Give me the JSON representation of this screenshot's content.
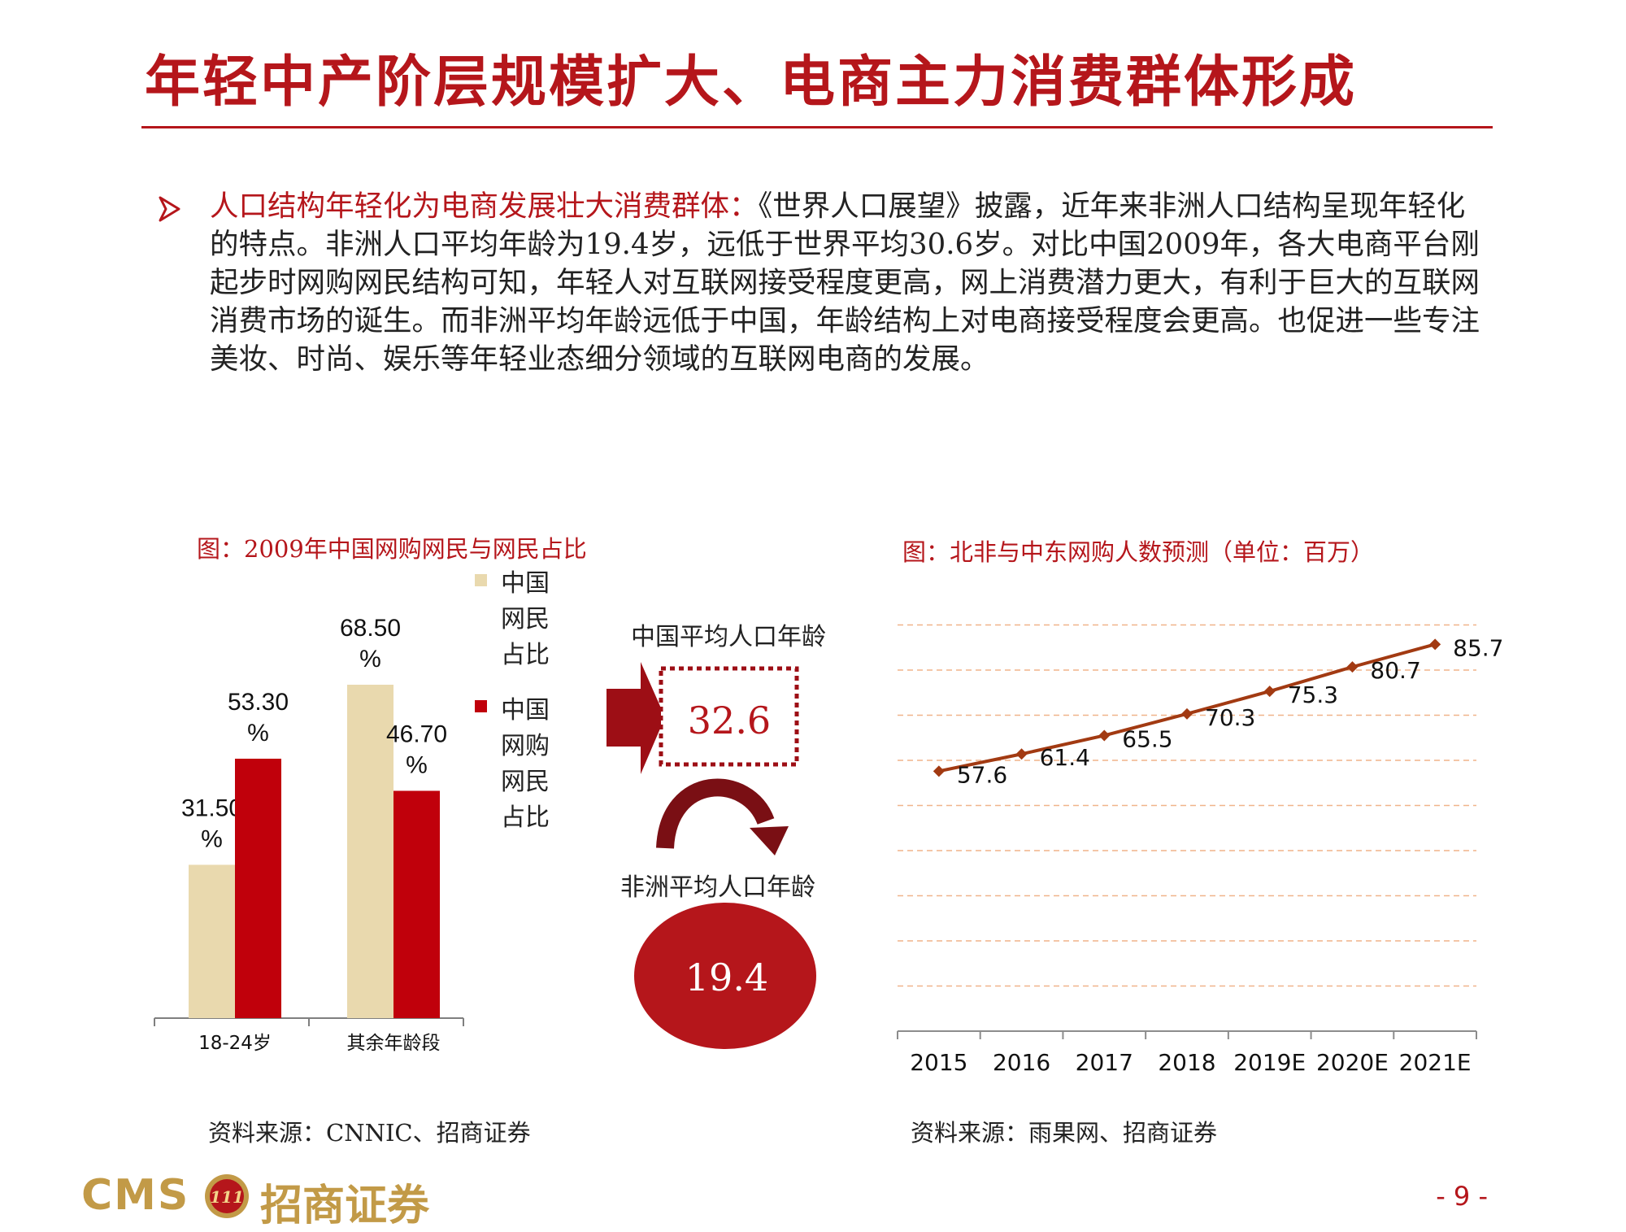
{
  "slide": {
    "title": "年轻中产阶层规模扩大、电商主力消费群体形成",
    "bullet_lead": "人口结构年轻化为电商发展壮大消费群体：",
    "bullet_text": "《世界人口展望》披露，近年来非洲人口结构呈现年轻化的特点。非洲人口平均年龄为19.4岁，远低于世界平均30.6岁。对比中国2009年，各大电商平台刚起步时网购网民结构可知，年轻人对互联网接受程度更高，网上消费潜力更大，有利于巨大的互联网消费市场的诞生。而非洲平均年龄远低于中国，年龄结构上对电商接受程度会更高。也促进一些专注美妆、时尚、娱乐等年轻业态细分领域的互联网电商的发展。",
    "page_number": "- 9 -"
  },
  "footer": {
    "logo_latin": "CMS",
    "logo_badge": "111",
    "logo_cn": "招商证券"
  },
  "left_chart": {
    "title": "图：2009年中国网购网民与网民占比",
    "source": "资料来源：CNNIC、招商证券"
  },
  "middle": {
    "china_label": "中国平均人口年龄",
    "china_value": "32.6",
    "africa_label": "非洲平均人口年龄",
    "africa_value": "19.4"
  },
  "right_chart": {
    "title": "图：北非与中东网购人数预测（单位：百万）",
    "source": "资料来源：雨果网、招商证券"
  },
  "colors": {
    "brand_red": "#b5161b",
    "bar_beige": "#e9d9ae",
    "bar_red": "#c0000b",
    "line_brown": "#a23a12",
    "gold": "#c29a47"
  },
  "chart_data": [
    {
      "type": "bar",
      "title": "图：2009年中国网购网民与网民占比",
      "categories": [
        "18-24岁",
        "其余年龄段"
      ],
      "series": [
        {
          "name": "中国网民占比",
          "values": [
            31.5,
            68.5
          ],
          "labels": [
            "31.50%",
            "68.50%"
          ],
          "color": "#e9d9ae"
        },
        {
          "name": "中国网购网民占比",
          "values": [
            53.3,
            46.7
          ],
          "labels": [
            "53.30%",
            "46.70%"
          ],
          "color": "#c0000b"
        }
      ],
      "ylim": [
        0,
        75
      ],
      "grid": false,
      "legend": "right"
    },
    {
      "type": "line",
      "title": "图：北非与中东网购人数预测（单位：百万）",
      "categories": [
        "2015",
        "2016",
        "2017",
        "2018",
        "2019E",
        "2020E",
        "2021E"
      ],
      "series": [
        {
          "values": [
            57.6,
            61.4,
            65.5,
            70.3,
            75.3,
            80.7,
            85.7
          ],
          "color": "#a23a12"
        }
      ],
      "ylim": [
        0,
        100
      ],
      "grid": true,
      "legend": "none"
    }
  ]
}
